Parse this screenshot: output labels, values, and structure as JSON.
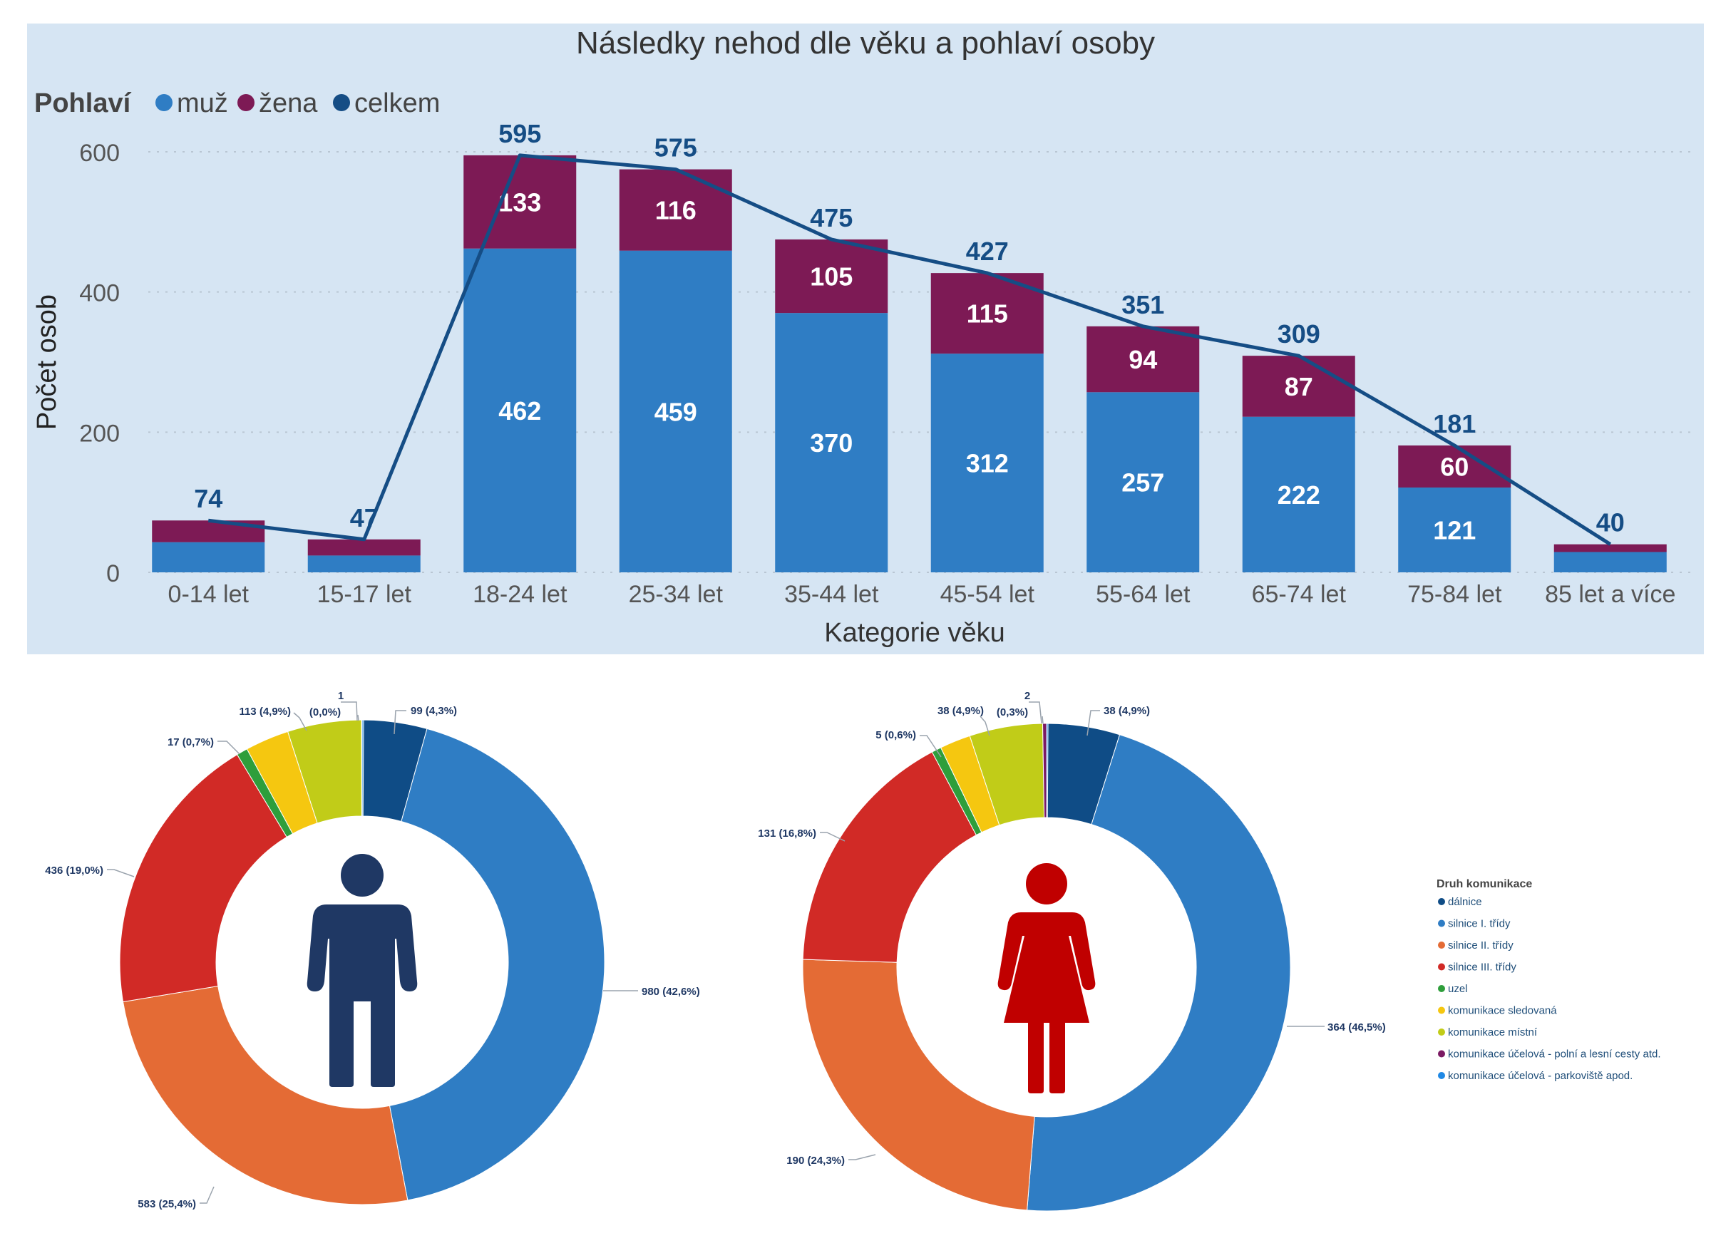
{
  "chart_data": [
    {
      "type": "bar",
      "stacked": true,
      "title": "Následky nehod dle věku a pohlaví osoby",
      "xlabel": "Kategorie věku",
      "ylabel": "Počet osob",
      "ylim": [
        0,
        600
      ],
      "yticks": [
        0,
        200,
        400,
        600
      ],
      "legend_title": "Pohlaví",
      "categories": [
        "0-14 let",
        "15-17 let",
        "18-24 let",
        "25-34 let",
        "35-44 let",
        "45-54 let",
        "55-64 let",
        "65-74 let",
        "75-84 let",
        "85 let a více"
      ],
      "series": [
        {
          "name": "muž",
          "type": "bar",
          "color": "#2f7dc4",
          "values": [
            43,
            24,
            462,
            459,
            370,
            312,
            257,
            222,
            121,
            29
          ],
          "labels": [
            "",
            "",
            "462",
            "459",
            "370",
            "312",
            "257",
            "222",
            "121",
            ""
          ]
        },
        {
          "name": "žena",
          "type": "bar",
          "color": "#7d1a55",
          "values": [
            31,
            23,
            133,
            116,
            105,
            115,
            94,
            87,
            60,
            11
          ],
          "labels": [
            "",
            "",
            "133",
            "116",
            "105",
            "115",
            "94",
            "87",
            "60",
            ""
          ]
        },
        {
          "name": "celkem",
          "type": "line",
          "color": "#154d85",
          "values": [
            74,
            47,
            595,
            575,
            475,
            427,
            351,
            309,
            181,
            40
          ],
          "labels": [
            "74",
            "47",
            "595",
            "575",
            "475",
            "427",
            "351",
            "309",
            "181",
            "40"
          ]
        }
      ]
    },
    {
      "type": "pie",
      "donut": true,
      "subject": "muž",
      "legend_title": "Druh komunikace",
      "categories": [
        "dálnice",
        "silnice I. třídy",
        "silnice II. třídy",
        "silnice III. třídy",
        "uzel",
        "komunikace sledovaná",
        "komunikace místní",
        "komunikace účelová - polní a lesní cesty atd.",
        "komunikace účelová - parkoviště apod."
      ],
      "values": [
        99,
        980,
        583,
        436,
        17,
        67,
        113,
        1,
        0
      ],
      "labels": [
        "99 (4,3%)",
        "980 (42,6%)",
        "583 (25,4%)",
        "436 (19,0%)",
        "17 (0,7%)",
        "",
        "113 (4,9%)",
        "1",
        "(0,0%)"
      ]
    },
    {
      "type": "pie",
      "donut": true,
      "subject": "žena",
      "legend_title": "Druh komunikace",
      "categories": [
        "dálnice",
        "silnice I. třídy",
        "silnice II. třídy",
        "silnice III. třídy",
        "uzel",
        "komunikace sledovaná",
        "komunikace místní",
        "komunikace účelová - polní a lesní cesty atd.",
        "komunikace účelová - parkoviště apod."
      ],
      "values": [
        38,
        364,
        190,
        131,
        5,
        16,
        38,
        2,
        0
      ],
      "labels": [
        "38 (4,9%)",
        "364 (46,5%)",
        "190 (24,3%)",
        "131 (16,8%)",
        "5 (0,6%)",
        "",
        "38 (4,9%)",
        "2",
        "(0,3%)"
      ]
    }
  ],
  "legend": {
    "title": "Druh komunikace",
    "items": [
      {
        "label": "dálnice",
        "color": "#0f4c86"
      },
      {
        "label": "silnice I. třídy",
        "color": "#2f7dc4"
      },
      {
        "label": "silnice II. třídy",
        "color": "#e46b35"
      },
      {
        "label": "silnice III. třídy",
        "color": "#d12a26"
      },
      {
        "label": "uzel",
        "color": "#2e9e3b"
      },
      {
        "label": "komunikace sledovaná",
        "color": "#f5c710"
      },
      {
        "label": "komunikace místní",
        "color": "#c1cc18"
      },
      {
        "label": "komunikace účelová - polní a lesní cesty atd.",
        "color": "#7b1a63"
      },
      {
        "label": "komunikace účelová - parkoviště apod.",
        "color": "#1e88e5"
      }
    ]
  },
  "colors": {
    "background_top": "#d6e5f3",
    "male_icon": "#1f3864",
    "female_icon": "#c00000",
    "total_label": "#154d85"
  }
}
